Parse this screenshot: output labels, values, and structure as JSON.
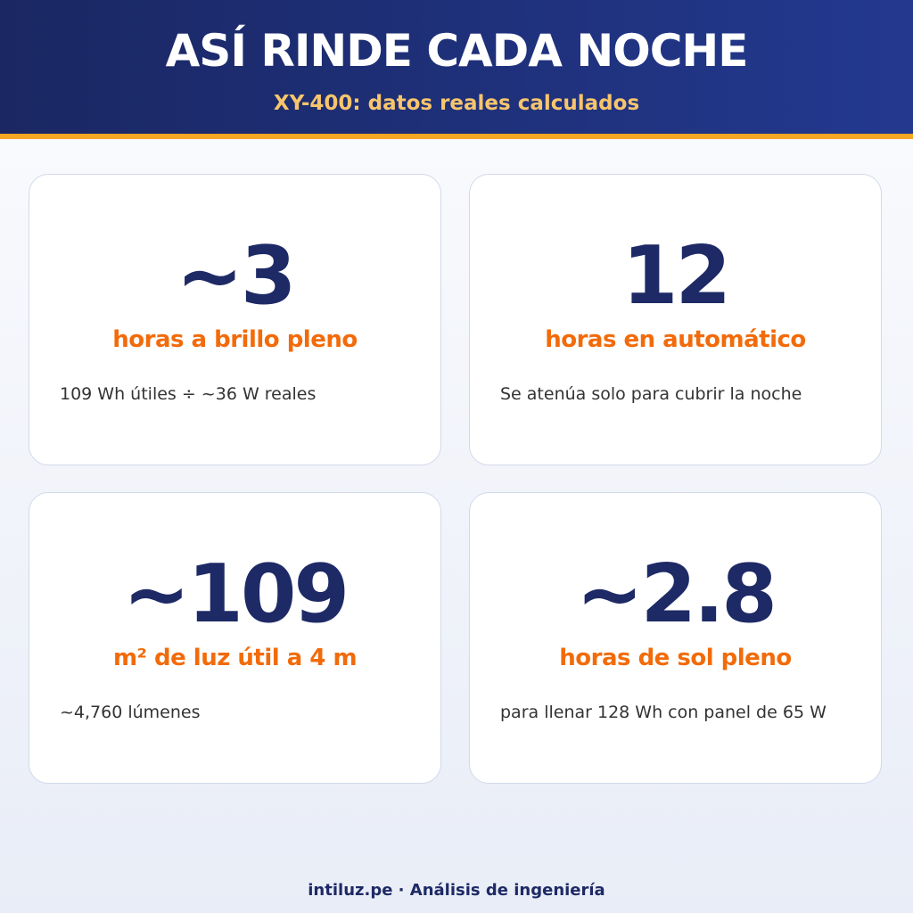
{
  "header": {
    "title": "ASÍ RINDE CADA NOCHE",
    "subtitle": "XY-400: datos reales calculados"
  },
  "cards": [
    {
      "value": "~3",
      "label": "horas a brillo pleno",
      "note": "109 Wh útiles ÷ ~36 W reales"
    },
    {
      "value": "12",
      "label": "horas en automático",
      "note": "Se atenúa solo para cubrir la noche"
    },
    {
      "value": "~109",
      "label": "m² de luz útil a 4 m",
      "note": "~4,760 lúmenes"
    },
    {
      "value": "~2.8",
      "label": "horas de sol pleno",
      "note": "para llenar 128 Wh con panel de 65 W"
    }
  ],
  "footer": {
    "text": "intiluz.pe · Análisis de ingeniería"
  }
}
